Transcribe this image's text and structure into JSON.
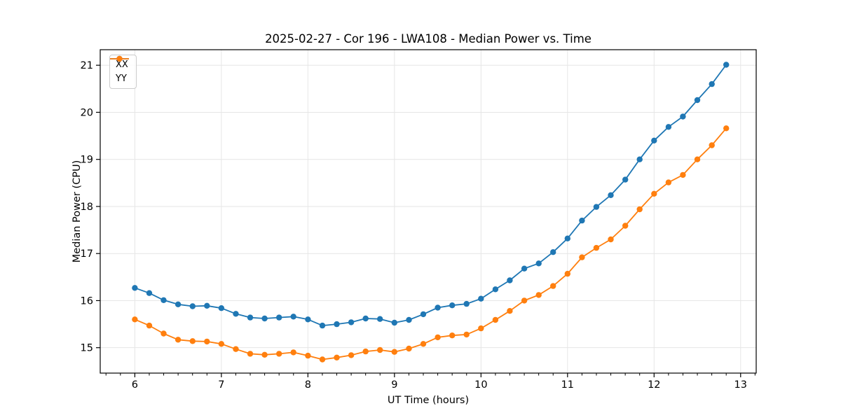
{
  "chart_data": {
    "type": "line",
    "title": "2025-02-27 - Cor 196 - LWA108 - Median Power vs. Time",
    "xlabel": "UT Time (hours)",
    "ylabel": "Median Power (CPU)",
    "xlim": [
      5.6,
      13.18
    ],
    "ylim": [
      14.46,
      21.33
    ],
    "x_ticks": [
      6,
      7,
      8,
      9,
      10,
      11,
      12,
      13
    ],
    "y_ticks": [
      15,
      16,
      17,
      18,
      19,
      20,
      21
    ],
    "x_minor_step": 0.166667,
    "grid": true,
    "grid_color": "#e6e6e6",
    "spine_color": "#000000",
    "text_color": "#000000",
    "legend_position": "upper left",
    "marker": "circle",
    "x": [
      6.0,
      6.167,
      6.333,
      6.5,
      6.667,
      6.833,
      7.0,
      7.167,
      7.333,
      7.5,
      7.667,
      7.833,
      8.0,
      8.167,
      8.333,
      8.5,
      8.667,
      8.833,
      9.0,
      9.167,
      9.333,
      9.5,
      9.667,
      9.833,
      10.0,
      10.167,
      10.333,
      10.5,
      10.667,
      10.833,
      11.0,
      11.167,
      11.333,
      11.5,
      11.667,
      11.833,
      12.0,
      12.167,
      12.333,
      12.5,
      12.667,
      12.833
    ],
    "series": [
      {
        "name": "XX",
        "color": "#1f77b4",
        "values": [
          16.27,
          16.16,
          16.01,
          15.92,
          15.88,
          15.89,
          15.84,
          15.72,
          15.64,
          15.62,
          15.64,
          15.66,
          15.6,
          15.47,
          15.5,
          15.54,
          15.62,
          15.61,
          15.53,
          15.59,
          15.71,
          15.85,
          15.9,
          15.93,
          16.04,
          16.24,
          16.43,
          16.68,
          16.79,
          17.03,
          17.32,
          17.7,
          17.99,
          18.24,
          18.57,
          19.0,
          19.4,
          19.69,
          19.91,
          20.26,
          20.6,
          21.01
        ]
      },
      {
        "name": "YY",
        "color": "#ff7f0e",
        "values": [
          15.6,
          15.47,
          15.3,
          15.17,
          15.14,
          15.13,
          15.08,
          14.97,
          14.87,
          14.85,
          14.87,
          14.9,
          14.83,
          14.75,
          14.79,
          14.84,
          14.92,
          14.95,
          14.91,
          14.98,
          15.08,
          15.22,
          15.26,
          15.28,
          15.41,
          15.59,
          15.78,
          16.0,
          16.12,
          16.31,
          16.57,
          16.92,
          17.12,
          17.3,
          17.59,
          17.94,
          18.27,
          18.51,
          18.67,
          19.0,
          19.3,
          19.66
        ]
      }
    ]
  }
}
